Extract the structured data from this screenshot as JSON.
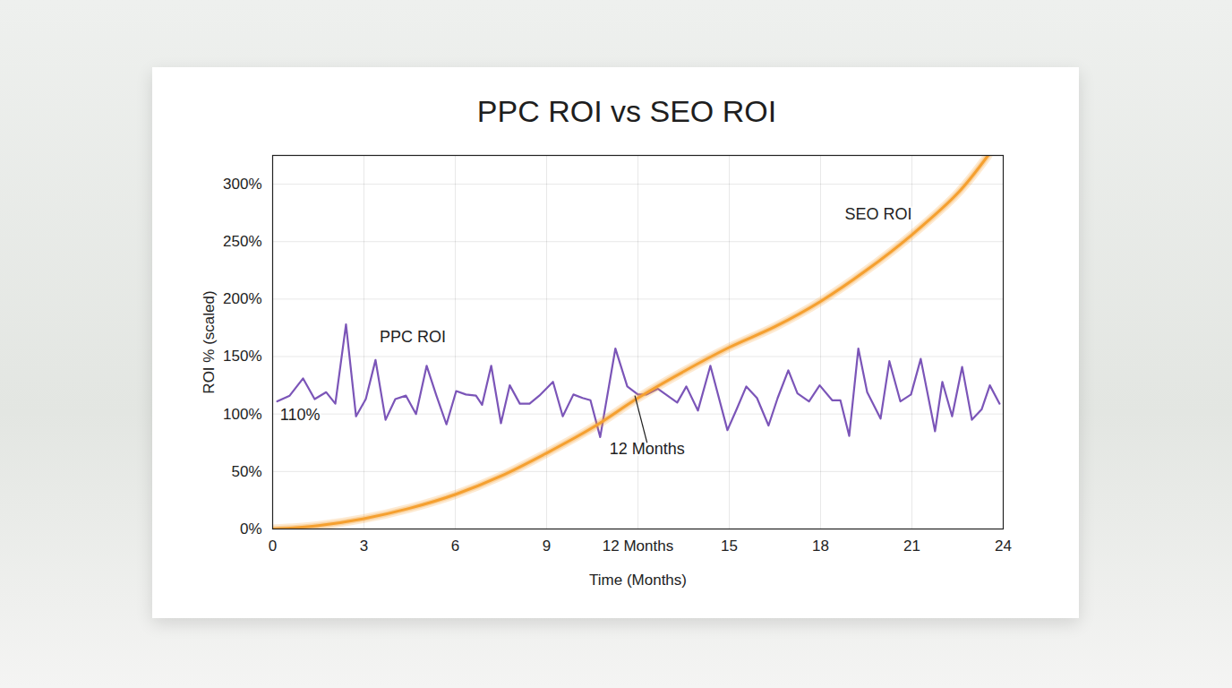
{
  "chart_data": {
    "type": "line",
    "title": "PPC ROI vs SEO ROI",
    "x_label": "Time (Months)",
    "y_label": "ROI % (scaled)",
    "xlim": [
      0,
      24
    ],
    "xticks": [
      0,
      3,
      6,
      9,
      {
        "value": 12,
        "label": "12 Months"
      },
      15,
      18,
      21,
      24
    ],
    "ylim": [
      0,
      325
    ],
    "yticks": [
      {
        "value": 0,
        "label": "0%"
      },
      {
        "value": 50,
        "label": "50%"
      },
      {
        "value": 100,
        "label": "100%"
      },
      {
        "value": 150,
        "label": "150%"
      },
      {
        "value": 200,
        "label": "200%"
      },
      {
        "value": 250,
        "label": "250%"
      },
      {
        "value": 300,
        "label": "300%"
      }
    ],
    "grid": true,
    "series": [
      {
        "name": "PPC ROI",
        "color": "#7b55b8",
        "line_style": "solid",
        "x": [
          0.15,
          0.56,
          1.0,
          1.38,
          1.76,
          2.06,
          2.41,
          2.74,
          3.06,
          3.38,
          3.71,
          4.03,
          4.38,
          4.71,
          5.06,
          5.38,
          5.71,
          6.03,
          6.35,
          6.68,
          6.88,
          7.18,
          7.5,
          7.79,
          8.12,
          8.44,
          8.76,
          9.21,
          9.53,
          9.88,
          10.18,
          10.44,
          10.76,
          11.26,
          11.65,
          12.0,
          12.29,
          12.65,
          12.97,
          13.29,
          13.59,
          13.97,
          14.38,
          14.94,
          15.24,
          15.56,
          15.91,
          16.29,
          16.59,
          16.94,
          17.24,
          17.62,
          17.97,
          18.38,
          18.65,
          18.94,
          19.24,
          19.53,
          19.97,
          20.26,
          20.62,
          20.97,
          21.29,
          21.76,
          22.0,
          22.32,
          22.65,
          22.97,
          23.29,
          23.56,
          23.88
        ],
        "values": [
          111,
          116,
          131,
          113,
          119,
          109,
          178,
          98,
          113,
          147,
          95,
          113,
          116,
          100,
          142,
          116,
          91,
          120,
          117,
          116,
          108,
          142,
          92,
          125,
          109,
          109,
          116,
          128,
          98,
          117,
          114,
          112,
          80,
          157,
          124,
          117,
          117,
          122,
          116,
          110,
          124,
          103,
          142,
          86,
          104,
          124,
          114,
          90,
          114,
          138,
          118,
          111,
          125,
          112,
          112,
          81,
          157,
          119,
          96,
          146,
          111,
          117,
          148,
          85,
          128,
          98,
          141,
          95,
          104,
          125,
          109
        ]
      },
      {
        "name": "SEO ROI",
        "color": "#f5a030",
        "line_style": "glow",
        "x": [
          0,
          1.5,
          3,
          4.5,
          6,
          7.5,
          9,
          10.5,
          12,
          13.5,
          15,
          16.5,
          18,
          19.5,
          21,
          22.5,
          23.5
        ],
        "values": [
          0,
          3,
          9,
          18,
          30,
          46,
          66,
          88,
          114,
          137,
          158,
          176,
          198,
          225,
          256,
          292,
          325
        ]
      }
    ],
    "annotations": [
      {
        "text": "PPC ROI",
        "x": 4.6,
        "y": 167
      },
      {
        "text": "SEO ROI",
        "x": 19.9,
        "y": 274
      },
      {
        "text": "110%",
        "x": 0.9,
        "y": 99
      },
      {
        "text": "12 Months",
        "x": 12.3,
        "y": 75,
        "arrow_to": [
          11.9,
          116
        ]
      }
    ]
  }
}
